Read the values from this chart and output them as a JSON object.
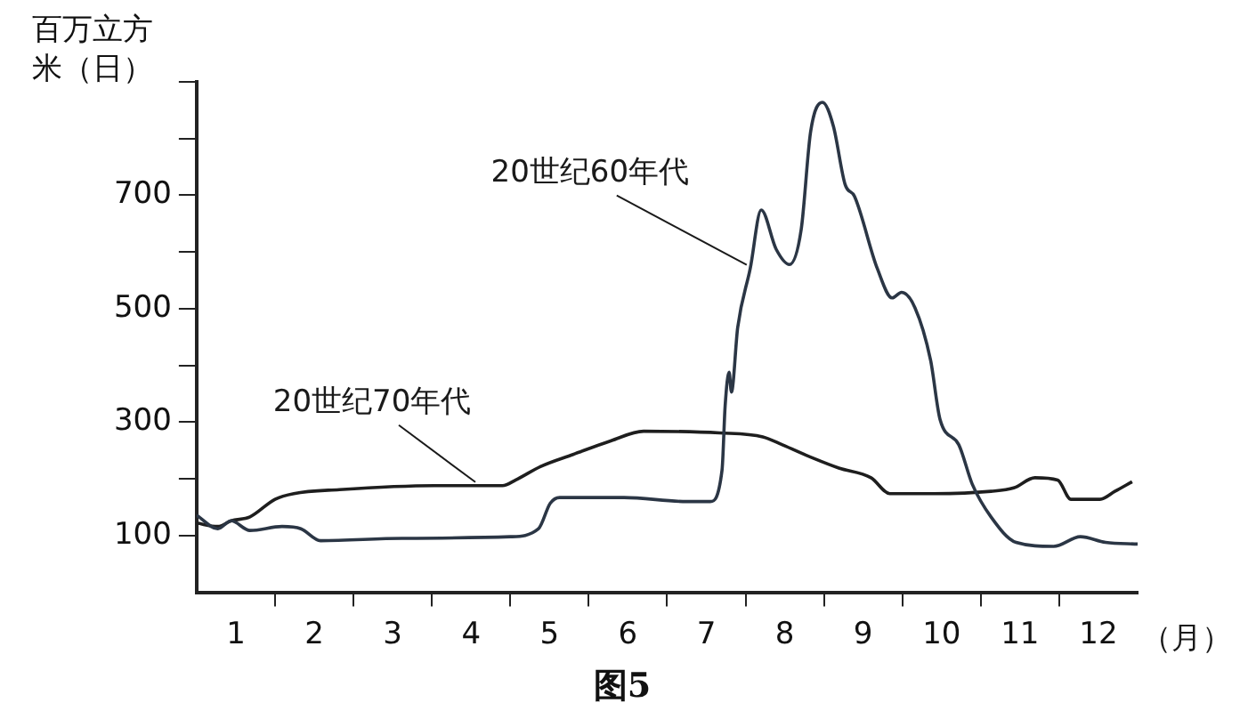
{
  "chart_data": {
    "type": "line",
    "title": "图5",
    "ylabel": "百万立方米（日）",
    "xlabel": "（月）",
    "xlim": [
      0,
      12
    ],
    "ylim": [
      0,
      900
    ],
    "xticks": [
      {
        "value": 0.5,
        "label": "1"
      },
      {
        "value": 1,
        "label": null
      },
      {
        "value": 1.5,
        "label": "2"
      },
      {
        "value": 2,
        "label": null
      },
      {
        "value": 2.5,
        "label": "3"
      },
      {
        "value": 3,
        "label": null
      },
      {
        "value": 3.5,
        "label": "4"
      },
      {
        "value": 4,
        "label": null
      },
      {
        "value": 4.5,
        "label": "5"
      },
      {
        "value": 5,
        "label": null
      },
      {
        "value": 5.5,
        "label": "6"
      },
      {
        "value": 6,
        "label": null
      },
      {
        "value": 6.5,
        "label": "7"
      },
      {
        "value": 7,
        "label": null
      },
      {
        "value": 7.5,
        "label": "8"
      },
      {
        "value": 8,
        "label": null
      },
      {
        "value": 8.5,
        "label": "9"
      },
      {
        "value": 9,
        "label": null
      },
      {
        "value": 9.5,
        "label": "10"
      },
      {
        "value": 10,
        "label": null
      },
      {
        "value": 10.5,
        "label": "11"
      },
      {
        "value": 11,
        "label": null
      },
      {
        "value": 11.5,
        "label": "12"
      }
    ],
    "yticks": [
      100,
      {
        "value": 200,
        "label": null
      },
      300,
      {
        "value": 400,
        "label": null
      },
      500,
      {
        "value": 600,
        "label": null
      },
      700,
      {
        "value": 800,
        "label": null
      },
      {
        "value": 900,
        "label": null
      }
    ],
    "grid": false,
    "legend": false,
    "series": [
      {
        "name": "20世纪60年代",
        "color": "#2b3645",
        "x": [
          0,
          0.27,
          0.44,
          0.68,
          1.09,
          1.33,
          1.58,
          2.62,
          4,
          4.36,
          4.51,
          4.63,
          5.45,
          6.25,
          6.55,
          6.7,
          6.74,
          6.79,
          6.82,
          6.9,
          7.06,
          7.2,
          7.39,
          7.56,
          7.71,
          7.83,
          7.98,
          8.12,
          8.27,
          8.39,
          8.68,
          8.87,
          8.99,
          9.16,
          9.36,
          9.48,
          9.72,
          9.89,
          10.13,
          10.45,
          10.93,
          11.27,
          11.59,
          12
        ],
        "values": [
          136,
          112,
          126,
          109,
          116,
          112,
          91,
          95,
          98,
          112,
          157,
          167,
          167,
          160,
          160,
          215,
          329,
          388,
          353,
          467,
          571,
          674,
          605,
          578,
          640,
          812,
          864,
          822,
          719,
          698,
          571,
          519,
          529,
          502,
          409,
          305,
          260,
          191,
          133,
          88,
          81,
          98,
          88,
          85
        ]
      },
      {
        "name": "20世纪70年代",
        "color": "#1e1e1e",
        "x": [
          0,
          0.27,
          0.44,
          0.68,
          1,
          1.24,
          1.82,
          3.03,
          3.9,
          4.07,
          4.39,
          4.8,
          5.28,
          5.7,
          6.67,
          7.22,
          7.47,
          7.87,
          8.19,
          8.6,
          8.84,
          9.4,
          10.13,
          10.42,
          10.69,
          10.98,
          11.15,
          11.52,
          11.71,
          11.93
        ],
        "values": [
          122,
          116,
          126,
          133,
          164,
          174,
          181,
          188,
          188,
          198,
          222,
          243,
          267,
          284,
          281,
          274,
          260,
          236,
          219,
          202,
          174,
          174,
          178,
          184,
          202,
          198,
          164,
          164,
          178,
          195
        ]
      }
    ]
  }
}
